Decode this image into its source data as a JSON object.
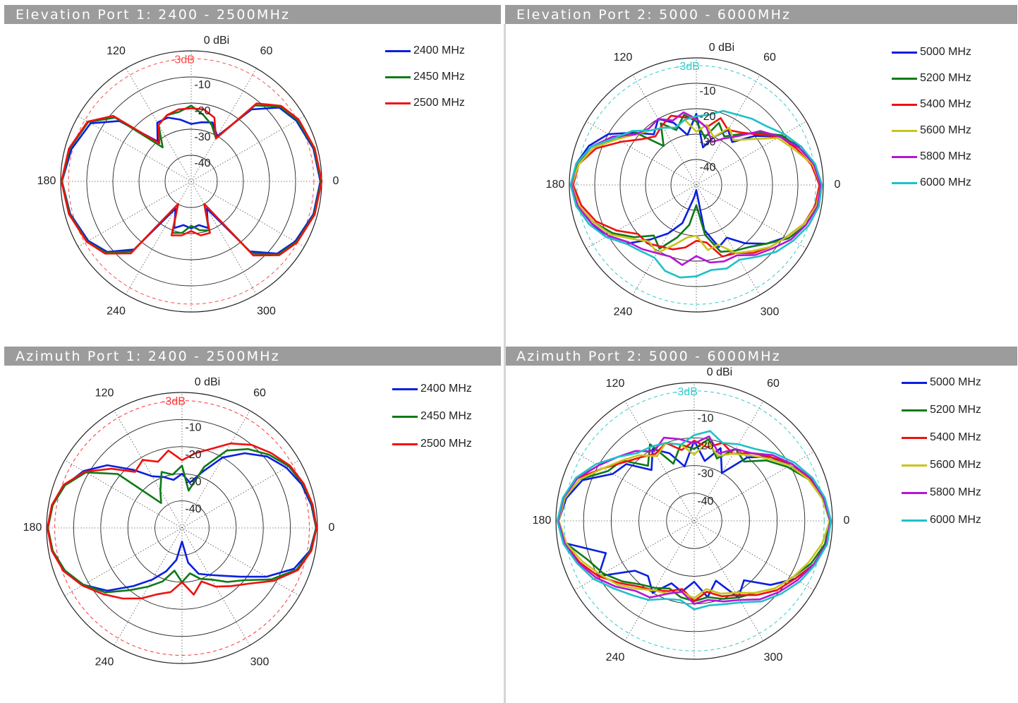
{
  "panels": [
    {
      "id": "elev-port1",
      "title": "Elevation Port 1: 2400 - 2500MHz",
      "ref_label": "-3dB",
      "ref_color": "#ff4c4c"
    },
    {
      "id": "elev-port2",
      "title": "Elevation Port 2: 5000 - 6000MHz",
      "ref_label": "-3dB",
      "ref_color": "#33cccc"
    },
    {
      "id": "azim-port1",
      "title": "Azimuth Port 1: 2400 - 2500MHz",
      "ref_label": "-3dB",
      "ref_color": "#ff3333"
    },
    {
      "id": "azim-port2",
      "title": "Azimuth Port 2: 5000 - 6000MHz",
      "ref_label": "-3dB",
      "ref_color": "#33cccc"
    }
  ],
  "axis": {
    "radial_ticks": [
      "0 dBi",
      "-10",
      "-20",
      "-30",
      "-40"
    ],
    "angle_labels": [
      "0",
      "60",
      "120",
      "180",
      "240",
      "300"
    ]
  },
  "colors": {
    "2400": "#0a1fe0",
    "2450": "#0e7a18",
    "2500": "#f01010",
    "5000": "#0a1fe0",
    "5200": "#0e7a18",
    "5400": "#f01010",
    "5600": "#c8c41a",
    "5800": "#b515d6",
    "6000": "#1ec0c8"
  },
  "chart_data": [
    {
      "type": "polar-line",
      "title": "Elevation Port 1: 2400 - 2500MHz",
      "rlim": [
        -50,
        0
      ],
      "rticks": [
        0,
        -10,
        -20,
        -30,
        -40
      ],
      "reference_db": -3,
      "theta_labels": [
        0,
        60,
        120,
        180,
        240,
        300
      ],
      "theta_deg": [
        0,
        15,
        30,
        40,
        50,
        60,
        70,
        80,
        90,
        100,
        110,
        120,
        130,
        140,
        150,
        165,
        180,
        195,
        210,
        220,
        230,
        240,
        250,
        260,
        270,
        280,
        290,
        300,
        310,
        320,
        330,
        345
      ],
      "series": [
        {
          "name": "2400 MHz",
          "values": [
            -0.5,
            -1.5,
            -3.5,
            -6,
            -14,
            -30,
            -26,
            -27,
            -28,
            -26,
            -24,
            -24,
            -30,
            -14,
            -5.5,
            -2.5,
            -0.5,
            -2,
            -4.5,
            -8,
            -16,
            -38,
            -31,
            -33,
            -32,
            -33,
            -31,
            -38,
            -15,
            -7,
            -4,
            -1.5
          ]
        },
        {
          "name": "2450 MHz",
          "values": [
            -0.3,
            -1.2,
            -3,
            -5.5,
            -12,
            -31,
            -27,
            -24,
            -21,
            -23,
            -23,
            -25,
            -33,
            -12,
            -4.5,
            -1.8,
            -0.5,
            -1.8,
            -4,
            -7.5,
            -15,
            -40,
            -29,
            -30,
            -33,
            -31,
            -30,
            -40,
            -14,
            -6.5,
            -3.5,
            -1.2
          ]
        },
        {
          "name": "2500 MHz",
          "values": [
            0,
            -1,
            -2.5,
            -5,
            -11,
            -31,
            -24,
            -22,
            -22,
            -22,
            -23,
            -25,
            -31,
            -11,
            -4.2,
            -1.5,
            -0.3,
            -1.5,
            -3.8,
            -7,
            -14,
            -40,
            -28,
            -29,
            -31,
            -29,
            -29,
            -40,
            -13,
            -6,
            -3.2,
            -1
          ]
        }
      ]
    },
    {
      "type": "polar-line",
      "title": "Elevation Port 2: 5000 - 6000MHz",
      "rlim": [
        -50,
        0
      ],
      "rticks": [
        0,
        -10,
        -20,
        -30,
        -40
      ],
      "reference_db": -3,
      "theta_labels": [
        0,
        60,
        120,
        180,
        240,
        300
      ],
      "theta_deg": [
        0,
        10,
        20,
        30,
        40,
        50,
        60,
        70,
        80,
        90,
        100,
        110,
        120,
        130,
        140,
        150,
        160,
        170,
        180,
        190,
        200,
        210,
        220,
        230,
        240,
        250,
        260,
        270,
        280,
        290,
        300,
        310,
        320,
        330,
        340,
        350
      ],
      "series": [
        {
          "name": "5000 MHz",
          "values": [
            -1,
            -3,
            -6,
            -12,
            -20,
            -28,
            -25,
            -30,
            -35,
            -22,
            -30,
            -24,
            -20,
            -24,
            -18,
            -10,
            -5,
            -2,
            -1,
            -3,
            -6,
            -9,
            -14,
            -22,
            -28,
            -34,
            -45,
            -48,
            -32,
            -24,
            -26,
            -20,
            -14,
            -9,
            -5,
            -2
          ]
        },
        {
          "name": "5200 MHz",
          "values": [
            -1,
            -3,
            -7,
            -11,
            -18,
            -24,
            -28,
            -24,
            -31,
            -25,
            -22,
            -27,
            -22,
            -30,
            -17,
            -14,
            -6,
            -2.5,
            -1,
            -3,
            -7,
            -12,
            -18,
            -24,
            -21,
            -28,
            -34,
            -42,
            -30,
            -22,
            -20,
            -18,
            -14,
            -8,
            -4,
            -2
          ]
        },
        {
          "name": "5400 MHz",
          "values": [
            -1.5,
            -4,
            -8,
            -12,
            -19,
            -23,
            -25,
            -22,
            -27,
            -24,
            -23,
            -21,
            -23,
            -25,
            -22,
            -16,
            -8,
            -3,
            -1.5,
            -4,
            -8,
            -14,
            -20,
            -20,
            -22,
            -23,
            -25,
            -28,
            -27,
            -20,
            -19,
            -15,
            -12,
            -9,
            -5,
            -2.5
          ]
        },
        {
          "name": "5600 MHz",
          "values": [
            -1,
            -3.5,
            -9,
            -13,
            -22,
            -27,
            -24,
            -30,
            -26,
            -29,
            -24,
            -26,
            -24,
            -22,
            -19,
            -14,
            -7,
            -3,
            -1,
            -3,
            -7,
            -11,
            -17,
            -21,
            -19,
            -25,
            -29,
            -30,
            -24,
            -25,
            -19,
            -16,
            -12,
            -9,
            -5,
            -2
          ]
        },
        {
          "name": "5800 MHz",
          "values": [
            -1,
            -3,
            -7,
            -12,
            -17,
            -25,
            -29,
            -32,
            -27,
            -24,
            -21,
            -23,
            -20,
            -21,
            -19,
            -12,
            -6,
            -2,
            -0.8,
            -2.5,
            -6,
            -10,
            -15,
            -17,
            -19,
            -20,
            -18,
            -22,
            -19,
            -18,
            -18,
            -14,
            -11,
            -7,
            -4,
            -1.5
          ]
        },
        {
          "name": "6000 MHz",
          "values": [
            -0.5,
            -2.5,
            -6,
            -10,
            -14,
            -16,
            -18,
            -19,
            -22,
            -23,
            -24,
            -26,
            -24,
            -22,
            -17,
            -13,
            -6,
            -2,
            -0.5,
            -2,
            -5,
            -9,
            -14,
            -16,
            -17,
            -14,
            -13,
            -14,
            -16,
            -15,
            -16,
            -13,
            -9,
            -6,
            -3,
            -1
          ]
        }
      ]
    },
    {
      "type": "polar-line",
      "title": "Azimuth Port 1: 2400 - 2500MHz",
      "rlim": [
        -50,
        0
      ],
      "rticks": [
        0,
        -10,
        -20,
        -30,
        -40
      ],
      "reference_db": -3,
      "theta_labels": [
        0,
        60,
        120,
        180,
        240,
        300
      ],
      "theta_deg": [
        0,
        10,
        20,
        30,
        40,
        50,
        60,
        70,
        80,
        90,
        100,
        110,
        120,
        130,
        140,
        150,
        160,
        170,
        180,
        190,
        200,
        210,
        220,
        230,
        240,
        250,
        260,
        270,
        280,
        290,
        300,
        310,
        320,
        330,
        340,
        350
      ],
      "series": [
        {
          "name": "2400 MHz",
          "values": [
            -0.5,
            -1.5,
            -3,
            -5.5,
            -9,
            -14,
            -20,
            -28,
            -33,
            -30,
            -32,
            -30,
            -28,
            -22,
            -14,
            -8,
            -4,
            -1.5,
            -0.5,
            -1.5,
            -4,
            -8,
            -14,
            -22,
            -28,
            -33,
            -38,
            -45,
            -37,
            -32,
            -30,
            -27,
            -22,
            -14,
            -6,
            -2
          ]
        },
        {
          "name": "2450 MHz",
          "values": [
            -0.5,
            -1.2,
            -2.5,
            -4.5,
            -8,
            -12,
            -17,
            -26,
            -36,
            -27,
            -30,
            -28,
            -34,
            -38,
            -19,
            -9,
            -4,
            -1.5,
            -0.5,
            -1.5,
            -4,
            -8,
            -13,
            -20,
            -25,
            -29,
            -34,
            -30,
            -33,
            -30,
            -28,
            -24,
            -20,
            -12,
            -5,
            -1.8
          ]
        },
        {
          "name": "2500 MHz",
          "values": [
            -0.3,
            -1,
            -2.2,
            -4,
            -7,
            -10,
            -14,
            -19,
            -22,
            -25,
            -21,
            -24,
            -21,
            -23,
            -16,
            -8.5,
            -3.5,
            -1.2,
            -0.3,
            -1.2,
            -3.5,
            -7.5,
            -12,
            -16,
            -20,
            -24,
            -26,
            -30,
            -25,
            -29,
            -25,
            -22,
            -18,
            -11,
            -4.5,
            -1.5
          ]
        }
      ]
    },
    {
      "type": "polar-line",
      "title": "Azimuth Port 2: 5000 - 6000MHz",
      "rlim": [
        -50,
        0
      ],
      "rticks": [
        0,
        -10,
        -20,
        -30,
        -40
      ],
      "reference_db": -3,
      "theta_labels": [
        0,
        60,
        120,
        180,
        240,
        300
      ],
      "theta_deg": [
        0,
        10,
        20,
        30,
        40,
        50,
        60,
        70,
        80,
        90,
        100,
        110,
        120,
        130,
        140,
        150,
        160,
        170,
        180,
        190,
        200,
        210,
        220,
        230,
        240,
        250,
        260,
        270,
        280,
        290,
        300,
        310,
        320,
        330,
        340,
        350
      ],
      "series": [
        {
          "name": "5000 MHz",
          "values": [
            -0.5,
            -2.5,
            -5,
            -10,
            -14,
            -20,
            -30,
            -22,
            -28,
            -21,
            -30,
            -24,
            -20,
            -26,
            -18,
            -16,
            -7,
            -3,
            -1,
            -3,
            -16,
            -10,
            -22,
            -24,
            -20,
            -26,
            -24,
            -28,
            -22,
            -27,
            -18,
            -22,
            -14,
            -8,
            -4,
            -1.5
          ]
        },
        {
          "name": "5200 MHz",
          "values": [
            -1,
            -3,
            -6,
            -11,
            -16,
            -22,
            -20,
            -26,
            -20,
            -24,
            -22,
            -28,
            -18,
            -24,
            -16,
            -14,
            -6,
            -2.5,
            -1,
            -3,
            -9,
            -12,
            -16,
            -20,
            -22,
            -24,
            -22,
            -21,
            -22,
            -20,
            -18,
            -16,
            -12,
            -9,
            -5,
            -2
          ]
        },
        {
          "name": "5400 MHz",
          "values": [
            -0.8,
            -2.5,
            -5.5,
            -9,
            -14,
            -18,
            -22,
            -20,
            -23,
            -21,
            -24,
            -20,
            -22,
            -20,
            -17,
            -12,
            -5,
            -2,
            -0.8,
            -2.5,
            -6,
            -10,
            -15,
            -19,
            -21,
            -23,
            -25,
            -21,
            -24,
            -21,
            -19,
            -15,
            -11,
            -8,
            -4,
            -1.5
          ]
        },
        {
          "name": "5600 MHz",
          "values": [
            -1,
            -3,
            -6,
            -10,
            -15,
            -19,
            -22,
            -25,
            -21,
            -26,
            -22,
            -20,
            -23,
            -19,
            -16,
            -12,
            -6,
            -2.5,
            -1,
            -3,
            -7,
            -11,
            -14,
            -18,
            -21,
            -22,
            -24,
            -22,
            -25,
            -22,
            -20,
            -16,
            -12,
            -9,
            -6,
            -3
          ]
        },
        {
          "name": "5800 MHz",
          "values": [
            -0.8,
            -2.5,
            -5,
            -9,
            -13,
            -18,
            -20,
            -24,
            -19,
            -22,
            -20,
            -18,
            -21,
            -17,
            -14,
            -10,
            -5,
            -2,
            -0.8,
            -2.5,
            -5.5,
            -9,
            -13,
            -17,
            -18,
            -22,
            -24,
            -20,
            -21,
            -19,
            -17,
            -13,
            -10,
            -7,
            -4,
            -1.5
          ]
        },
        {
          "name": "6000 MHz",
          "values": [
            -0.5,
            -2,
            -4.5,
            -8,
            -12,
            -16,
            -18,
            -20,
            -17,
            -19,
            -22,
            -20,
            -19,
            -18,
            -14,
            -9,
            -4.5,
            -1.8,
            -0.5,
            -2,
            -5,
            -8,
            -12,
            -15,
            -17,
            -20,
            -21,
            -18,
            -19,
            -18,
            -16,
            -12,
            -9,
            -6,
            -3.5,
            -1.2
          ]
        }
      ]
    }
  ]
}
